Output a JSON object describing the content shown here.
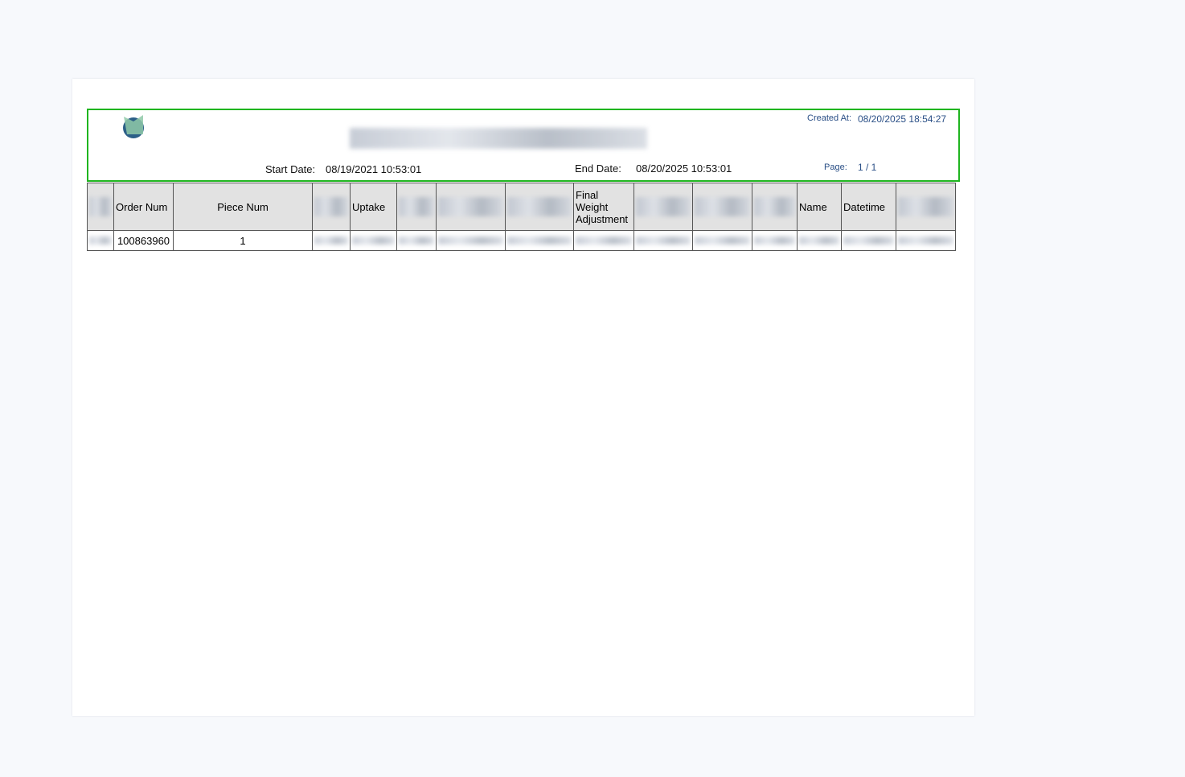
{
  "header": {
    "created_label": "Created At:",
    "created_value": "08/20/2025 18:54:27",
    "start_label": "Start Date:",
    "start_value": "08/19/2021 10:53:01",
    "end_label": "End Date:",
    "end_value": "08/20/2025 10:53:01",
    "page_label": "Page:",
    "page_value": "1 / 1"
  },
  "table": {
    "columns": [
      null,
      "Order Num",
      "Piece Num",
      null,
      "Uptake",
      null,
      null,
      null,
      "Final Weight Adjustment",
      null,
      null,
      null,
      "Name",
      "Datetime",
      null
    ],
    "rows": [
      [
        null,
        "100863960",
        "1",
        null,
        null,
        null,
        null,
        null,
        null,
        null,
        null,
        null,
        null,
        null,
        null
      ]
    ]
  }
}
